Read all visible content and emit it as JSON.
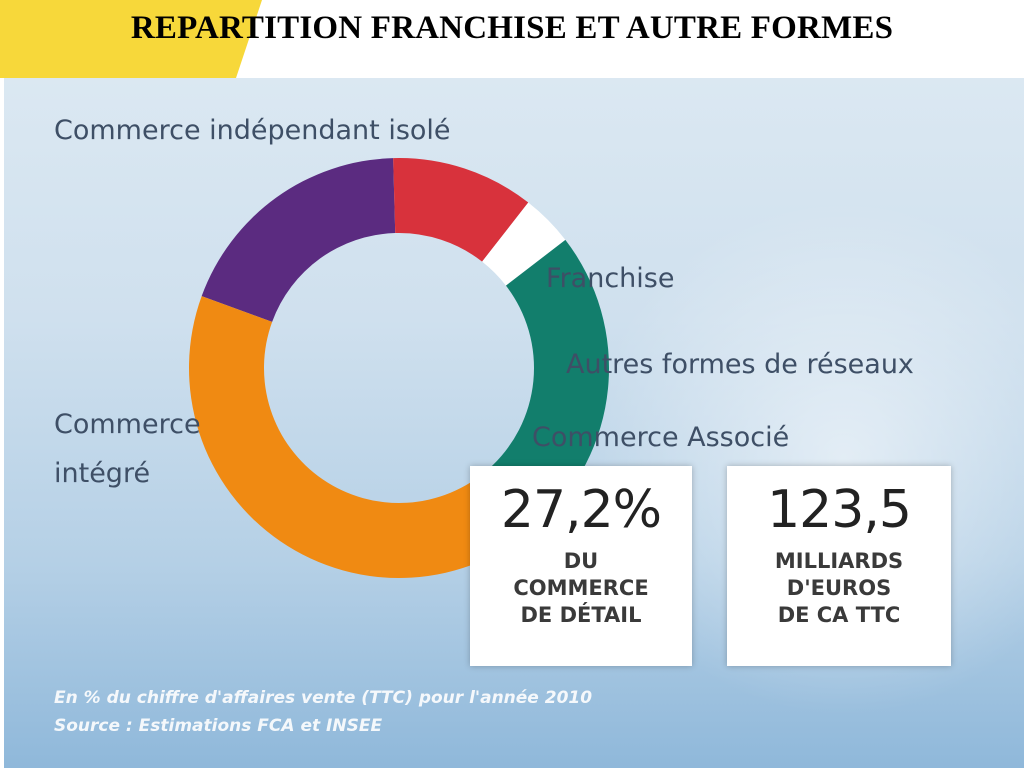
{
  "slide": {
    "title": "REPARTITION FRANCHISE ET AUTRE FORMES",
    "accent_color": "#f7d83a"
  },
  "chart_data": {
    "type": "pie",
    "variant": "donut",
    "title": "",
    "categories": [
      "Commerce indépendant isolé",
      "Franchise",
      "Autres formes de réseaux",
      "Commerce Associé",
      "Commerce intégré"
    ],
    "values": [
      19,
      11,
      4,
      24,
      42
    ],
    "colors": [
      "#5b2b80",
      "#d8323c",
      "#ffffff",
      "#127e6c",
      "#f08a12"
    ],
    "labels": {
      "isole": "Commerce indépendant isolé",
      "franchise": "Franchise",
      "autres": "Autres formes de réseaux",
      "associe": "Commerce Associé",
      "integre_line1": "Commerce",
      "integre_line2": "intégré"
    }
  },
  "stats": [
    {
      "value": "27,2%",
      "caption": [
        "DU",
        "COMMERCE",
        "DE DÉTAIL"
      ]
    },
    {
      "value": "123,5",
      "caption": [
        "MILLIARDS",
        "D'EUROS",
        "DE CA TTC"
      ]
    }
  ],
  "footnote": {
    "line1": "En % du chiffre d'affaires vente (TTC) pour l'année 2010",
    "line2": "Source : Estimations FCA et INSEE"
  }
}
